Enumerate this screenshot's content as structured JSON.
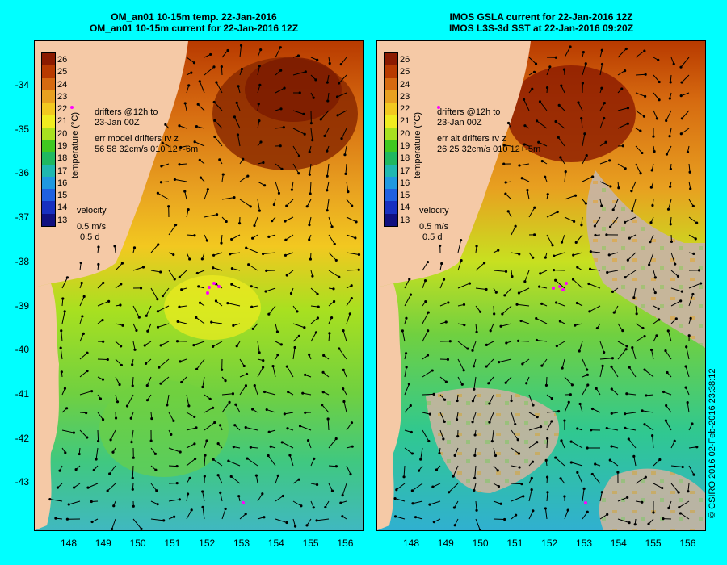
{
  "left_panel": {
    "title_line1": "OM_an01 10-15m temp. 22-Jan-2016",
    "title_line2": "OM_an01 10-15m current for 22-Jan-2016 12Z",
    "drifters_line1": "drifters @12h to",
    "drifters_line2": "23-Jan 00Z",
    "err_line1": "err model drifters rv z",
    "err_line2": "56 58 32cm/s 010 12+-6m",
    "velocity_label": "velocity",
    "velocity_value": "0.5 m/s",
    "velocity_time": "0.5 d"
  },
  "right_panel": {
    "title_line1": "IMOS GSLA current for 22-Jan-2016 12Z",
    "title_line2": "IMOS L3S-3d SST at 22-Jan-2016 09:20Z",
    "drifters_line1": "drifters @12h to",
    "drifters_line2": "23-Jan 00Z",
    "err_line1": "err alt drifters rv z",
    "err_line2": "26 25 32cm/s 010 12+-5m",
    "velocity_label": "velocity",
    "velocity_value": "0.5 m/s",
    "velocity_time": "0.5 d"
  },
  "colorbar": {
    "title": "temperature (°C)",
    "labels": [
      "26",
      "25",
      "24",
      "23",
      "22",
      "21",
      "20",
      "19",
      "18",
      "17",
      "16",
      "15",
      "14",
      "13"
    ],
    "colors": [
      "#8b1a00",
      "#b83a00",
      "#d66a10",
      "#e8a020",
      "#f2c820",
      "#f0ec20",
      "#a8e020",
      "#40c820",
      "#20b860",
      "#20b8b0",
      "#2098e0",
      "#2060e0",
      "#1830c0",
      "#101080"
    ]
  },
  "y_ticks": [
    "-34",
    "-35",
    "-36",
    "-37",
    "-38",
    "-39",
    "-40",
    "-41",
    "-42",
    "-43"
  ],
  "x_ticks": [
    "148",
    "149",
    "150",
    "151",
    "152",
    "153",
    "154",
    "155",
    "156"
  ],
  "credit": "© CSIRO 2016   02-Feb-2016 23:38:12",
  "colors": {
    "land": "#f5c9a6",
    "background": "#00ffff",
    "cloud": "#c8b4a0",
    "drifter": "#ff00ff"
  }
}
